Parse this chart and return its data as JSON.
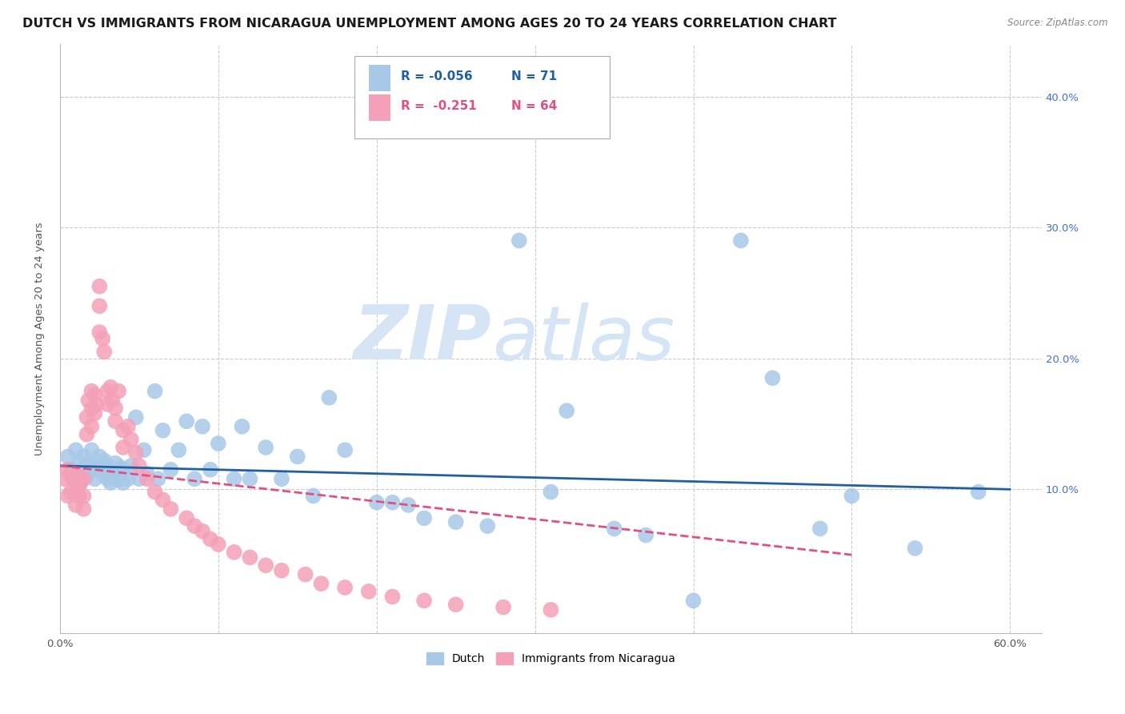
{
  "title": "DUTCH VS IMMIGRANTS FROM NICARAGUA UNEMPLOYMENT AMONG AGES 20 TO 24 YEARS CORRELATION CHART",
  "source": "Source: ZipAtlas.com",
  "ylabel": "Unemployment Among Ages 20 to 24 years",
  "xlim": [
    0.0,
    0.62
  ],
  "ylim": [
    -0.01,
    0.44
  ],
  "xtick_left": 0.0,
  "xtick_right": 0.6,
  "xtick_left_label": "0.0%",
  "xtick_right_label": "60.0%",
  "right_yticks": [
    0.1,
    0.2,
    0.3,
    0.4
  ],
  "right_yticklabels": [
    "10.0%",
    "20.0%",
    "30.0%",
    "40.0%"
  ],
  "dutch_color": "#a8c8e8",
  "nicaragua_color": "#f4a0b8",
  "dutch_line_color": "#2060a0",
  "nicaragua_line_color": "#e05080",
  "dutch_R": -0.056,
  "dutch_N": 71,
  "nicaragua_R": -0.251,
  "nicaragua_N": 64,
  "watermark_zip": "ZIP",
  "watermark_atlas": "atlas",
  "watermark_color": "#d8d8d8",
  "legend_labels": [
    "Dutch",
    "Immigrants from Nicaragua"
  ],
  "dutch_scatter_x": [
    0.005,
    0.008,
    0.01,
    0.01,
    0.012,
    0.013,
    0.015,
    0.015,
    0.017,
    0.018,
    0.02,
    0.02,
    0.022,
    0.023,
    0.025,
    0.025,
    0.027,
    0.028,
    0.03,
    0.03,
    0.032,
    0.033,
    0.035,
    0.035,
    0.037,
    0.038,
    0.04,
    0.04,
    0.043,
    0.045,
    0.048,
    0.05,
    0.053,
    0.055,
    0.06,
    0.062,
    0.065,
    0.07,
    0.075,
    0.08,
    0.085,
    0.09,
    0.095,
    0.1,
    0.11,
    0.115,
    0.12,
    0.13,
    0.14,
    0.15,
    0.16,
    0.17,
    0.18,
    0.2,
    0.21,
    0.22,
    0.23,
    0.25,
    0.27,
    0.29,
    0.31,
    0.32,
    0.35,
    0.37,
    0.4,
    0.43,
    0.45,
    0.48,
    0.5,
    0.54,
    0.58
  ],
  "dutch_scatter_y": [
    0.125,
    0.115,
    0.13,
    0.11,
    0.12,
    0.105,
    0.115,
    0.125,
    0.11,
    0.12,
    0.115,
    0.13,
    0.108,
    0.118,
    0.115,
    0.125,
    0.112,
    0.122,
    0.108,
    0.118,
    0.105,
    0.115,
    0.11,
    0.12,
    0.107,
    0.117,
    0.105,
    0.115,
    0.108,
    0.118,
    0.155,
    0.108,
    0.13,
    0.112,
    0.175,
    0.108,
    0.145,
    0.115,
    0.13,
    0.152,
    0.108,
    0.148,
    0.115,
    0.135,
    0.108,
    0.148,
    0.108,
    0.132,
    0.108,
    0.125,
    0.095,
    0.17,
    0.13,
    0.09,
    0.09,
    0.088,
    0.078,
    0.075,
    0.072,
    0.29,
    0.098,
    0.16,
    0.07,
    0.065,
    0.015,
    0.29,
    0.185,
    0.07,
    0.095,
    0.055,
    0.098
  ],
  "nicaragua_scatter_x": [
    0.003,
    0.005,
    0.005,
    0.007,
    0.007,
    0.008,
    0.01,
    0.01,
    0.01,
    0.012,
    0.012,
    0.013,
    0.015,
    0.015,
    0.015,
    0.017,
    0.017,
    0.018,
    0.02,
    0.02,
    0.02,
    0.022,
    0.022,
    0.023,
    0.025,
    0.025,
    0.025,
    0.027,
    0.028,
    0.03,
    0.03,
    0.032,
    0.033,
    0.035,
    0.035,
    0.037,
    0.04,
    0.04,
    0.043,
    0.045,
    0.048,
    0.05,
    0.055,
    0.06,
    0.065,
    0.07,
    0.08,
    0.085,
    0.09,
    0.095,
    0.1,
    0.11,
    0.12,
    0.13,
    0.14,
    0.155,
    0.165,
    0.18,
    0.195,
    0.21,
    0.23,
    0.25,
    0.28,
    0.31
  ],
  "nicaragua_scatter_y": [
    0.108,
    0.115,
    0.095,
    0.112,
    0.098,
    0.108,
    0.112,
    0.098,
    0.088,
    0.108,
    0.095,
    0.105,
    0.108,
    0.095,
    0.085,
    0.155,
    0.142,
    0.168,
    0.175,
    0.162,
    0.148,
    0.172,
    0.158,
    0.165,
    0.255,
    0.24,
    0.22,
    0.215,
    0.205,
    0.175,
    0.165,
    0.178,
    0.168,
    0.162,
    0.152,
    0.175,
    0.145,
    0.132,
    0.148,
    0.138,
    0.128,
    0.118,
    0.108,
    0.098,
    0.092,
    0.085,
    0.078,
    0.072,
    0.068,
    0.062,
    0.058,
    0.052,
    0.048,
    0.042,
    0.038,
    0.035,
    0.028,
    0.025,
    0.022,
    0.018,
    0.015,
    0.012,
    0.01,
    0.008
  ],
  "dutch_trend_x": [
    0.0,
    0.6
  ],
  "dutch_trend_y": [
    0.118,
    0.1
  ],
  "nicaragua_trend_x": [
    0.0,
    0.5
  ],
  "nicaragua_trend_y": [
    0.118,
    0.05
  ],
  "grid_color": "#cccccc",
  "hgrid_yticks": [
    0.1,
    0.2,
    0.3,
    0.4
  ],
  "title_fontsize": 11.5,
  "axis_fontsize": 9.5,
  "tick_fontsize": 9.5
}
